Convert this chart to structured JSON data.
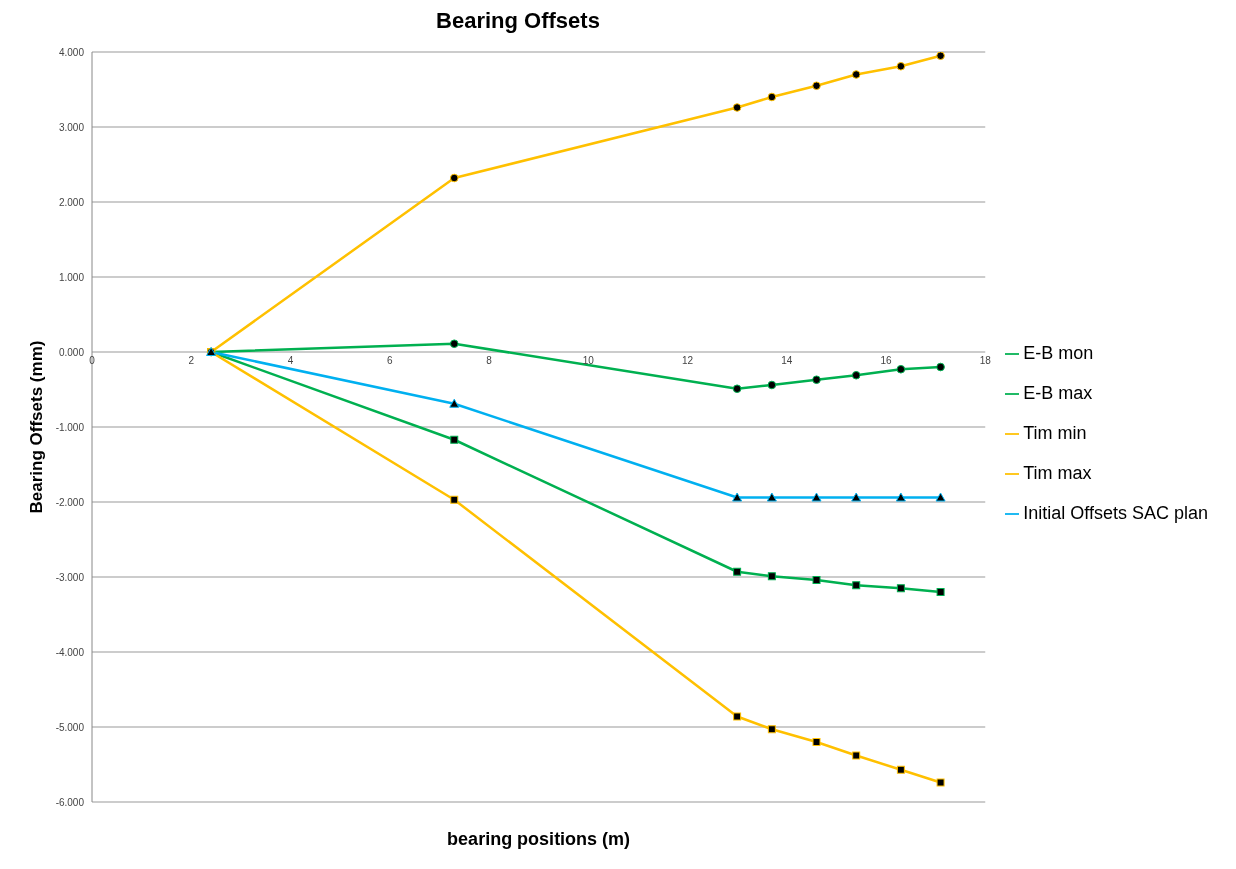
{
  "chart_data": {
    "type": "line",
    "title": "Bearing Offsets",
    "xlabel": "bearing  positions (m)",
    "ylabel": "Bearing Offsets (mm)",
    "x": [
      2.4,
      7.3,
      13.0,
      13.7,
      14.6,
      15.4,
      16.3,
      17.1
    ],
    "series": [
      {
        "name": "E-B mon",
        "color": "#00b050",
        "marker": "square",
        "values": [
          0,
          -1.17,
          -2.93,
          -2.99,
          -3.04,
          -3.11,
          -3.15,
          -3.2
        ]
      },
      {
        "name": "E-B max",
        "color": "#00b050",
        "marker": "circle",
        "values": [
          0,
          0.11,
          -0.49,
          -0.44,
          -0.37,
          -0.31,
          -0.23,
          -0.2
        ]
      },
      {
        "name": "Tim min",
        "color": "#ffc000",
        "marker": "square",
        "values": [
          0,
          -1.97,
          -4.86,
          -5.03,
          -5.2,
          -5.38,
          -5.57,
          -5.74
        ]
      },
      {
        "name": "Tim max",
        "color": "#ffc000",
        "marker": "circle",
        "values": [
          0,
          2.32,
          3.26,
          3.4,
          3.55,
          3.7,
          3.81,
          3.95
        ]
      },
      {
        "name": "Initial Offsets SAC plan",
        "color": "#00b0f0",
        "marker": "triangle",
        "values": [
          0,
          -0.69,
          -1.94,
          -1.94,
          -1.94,
          -1.94,
          -1.94,
          -1.94
        ]
      }
    ],
    "xlim": [
      0,
      18
    ],
    "xticks": [
      0,
      2,
      4,
      6,
      8,
      10,
      12,
      14,
      16,
      18
    ],
    "ylim": [
      -6,
      4
    ],
    "yticks": [
      {
        "value": -6,
        "label": "-6.000"
      },
      {
        "value": -5,
        "label": "-5.000"
      },
      {
        "value": -4,
        "label": "-4.000"
      },
      {
        "value": -3,
        "label": "-3.000"
      },
      {
        "value": -2,
        "label": "-2.000"
      },
      {
        "value": -1,
        "label": "-1.000"
      },
      {
        "value": 0,
        "label": "0.000"
      },
      {
        "value": 1,
        "label": "1.000"
      },
      {
        "value": 2,
        "label": "2.000"
      },
      {
        "value": 3,
        "label": "3.000"
      },
      {
        "value": 4,
        "label": "4.000"
      }
    ],
    "grid": "y",
    "legend": "right",
    "line_style": "solid"
  }
}
